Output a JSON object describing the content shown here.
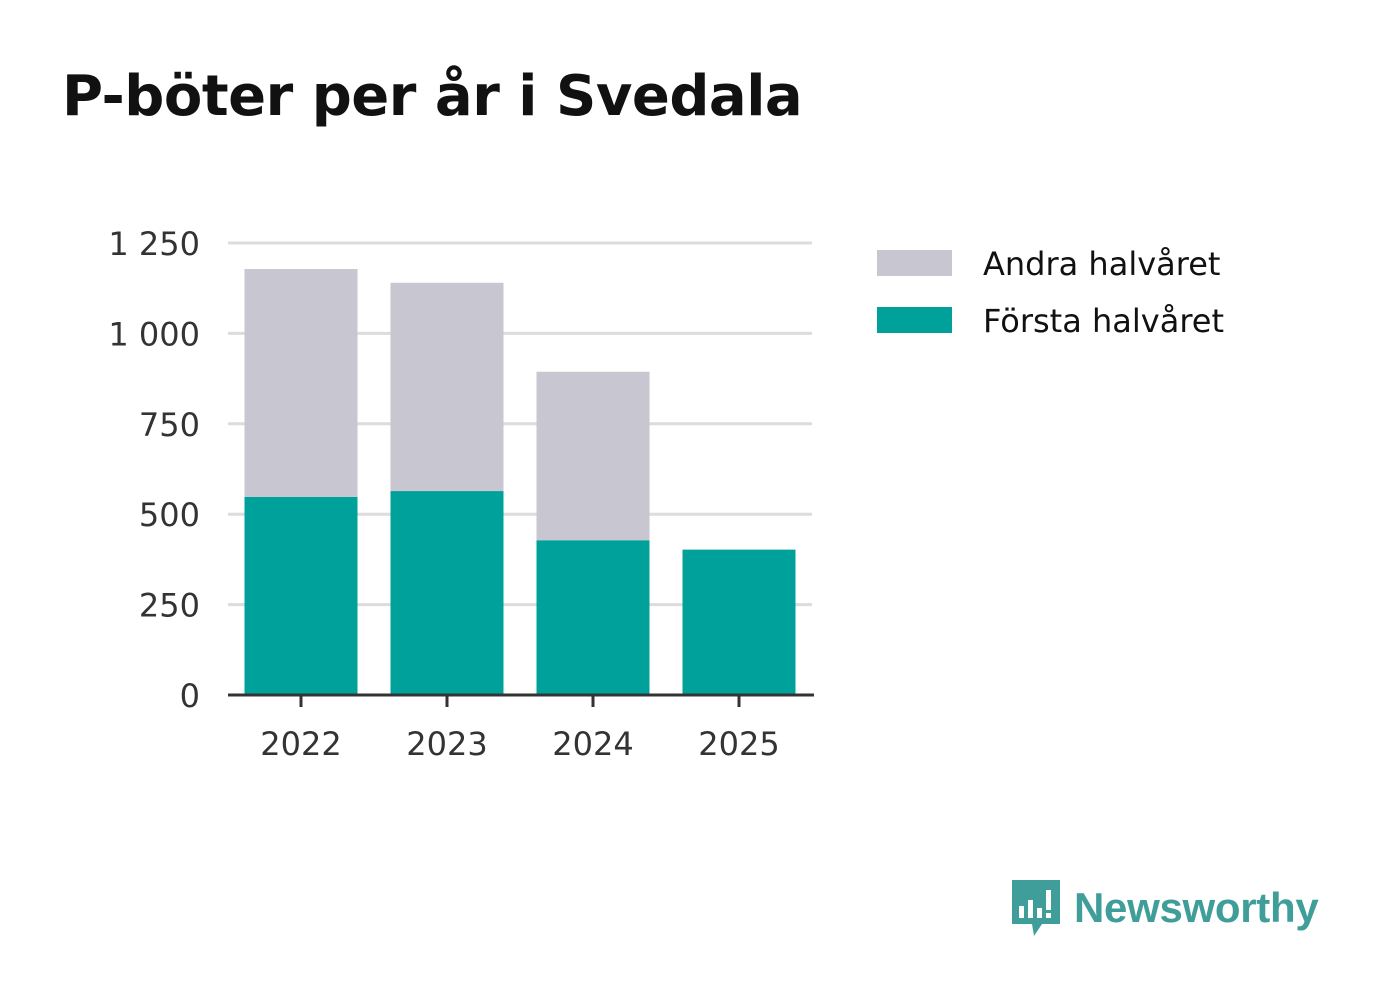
{
  "title": "P-böter per år i Svedala",
  "brand": {
    "name": "Newsworthy",
    "icon": "newsworthy-logo-icon",
    "color": "#3f9e9a"
  },
  "chart_data": {
    "type": "bar",
    "stacked": true,
    "title": "P-böter per år i Svedala",
    "xlabel": "",
    "ylabel": "",
    "categories": [
      "2022",
      "2023",
      "2024",
      "2025"
    ],
    "series": [
      {
        "name": "Första halvåret",
        "color": "#00a19a",
        "values": [
          548,
          564,
          428,
          402
        ]
      },
      {
        "name": "Andra halvåret",
        "color": "#c8c6d0",
        "values": [
          630,
          576,
          466,
          0
        ]
      }
    ],
    "legend_order": [
      "Andra halvåret",
      "Första halvåret"
    ],
    "legend_position": "right",
    "yticks": [
      0,
      250,
      500,
      750,
      1000,
      1250
    ],
    "ytick_labels": [
      "0",
      "250",
      "500",
      "750",
      "1 000",
      "1 250"
    ],
    "ylim": [
      0,
      1250
    ],
    "grid": true
  }
}
